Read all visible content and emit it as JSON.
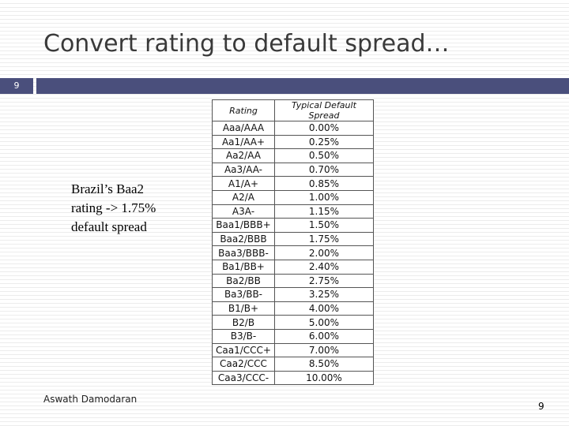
{
  "title": "Convert rating to default spread…",
  "slide_number": "9",
  "note": {
    "lines": [
      "Brazil’s Baa2",
      "rating -> 1.75%",
      "default spread"
    ]
  },
  "table": {
    "header": [
      "Rating",
      "Typical Default Spread"
    ],
    "rows": [
      [
        "Aaa/AAA",
        "0.00%"
      ],
      [
        "Aa1/AA+",
        "0.25%"
      ],
      [
        "Aa2/AA",
        "0.50%"
      ],
      [
        "Aa3/AA-",
        "0.70%"
      ],
      [
        "A1/A+",
        "0.85%"
      ],
      [
        "A2/A",
        "1.00%"
      ],
      [
        "A3A-",
        "1.15%"
      ],
      [
        "Baa1/BBB+",
        "1.50%"
      ],
      [
        "Baa2/BBB",
        "1.75%"
      ],
      [
        "Baa3/BBB-",
        "2.00%"
      ],
      [
        "Ba1/BB+",
        "2.40%"
      ],
      [
        "Ba2/BB",
        "2.75%"
      ],
      [
        "Ba3/BB-",
        "3.25%"
      ],
      [
        "B1/B+",
        "4.00%"
      ],
      [
        "B2/B",
        "5.00%"
      ],
      [
        "B3/B-",
        "6.00%"
      ],
      [
        "Caa1/CCC+",
        "7.00%"
      ],
      [
        "Caa2/CCC",
        "8.50%"
      ],
      [
        "Caa3/CCC-",
        "10.00%"
      ]
    ]
  },
  "footer": "Aswath Damodaran"
}
